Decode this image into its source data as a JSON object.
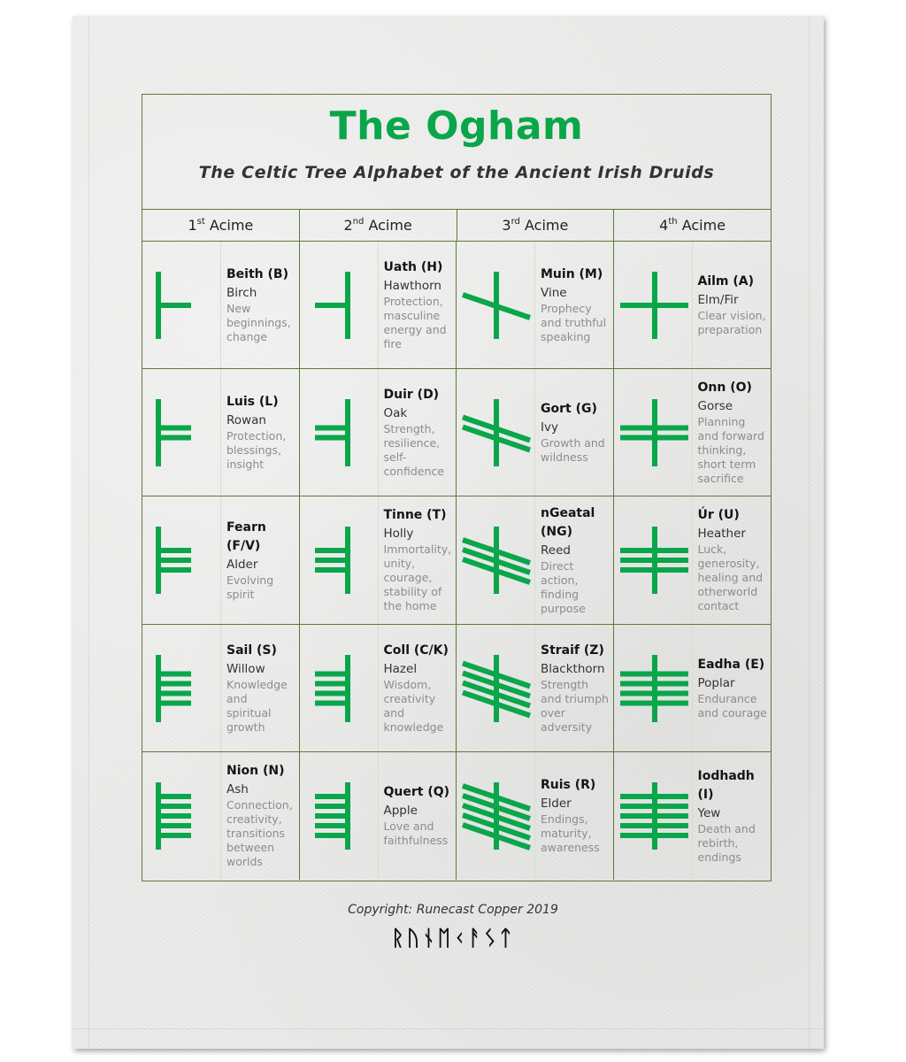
{
  "title": "The Ogham",
  "subtitle": "The Celtic Tree Alphabet of the Ancient Irish Druids",
  "colors": {
    "accent": "#0aa64a",
    "border": "#5c7a3a",
    "text": "#151515",
    "muted": "#8c8c8c",
    "towel": "#ebebea"
  },
  "columns": [
    {
      "num": "1",
      "sup": "st",
      "label": "Acime"
    },
    {
      "num": "2",
      "sup": "nd",
      "label": "Acime"
    },
    {
      "num": "3",
      "sup": "rd",
      "label": "Acime"
    },
    {
      "num": "4",
      "sup": "th",
      "label": "Acime"
    }
  ],
  "rows": [
    [
      {
        "name": "Beith (B)",
        "tree": "Birch",
        "meaning": "New beginnings, change",
        "acime": 1,
        "strokes": 1
      },
      {
        "name": "Uath (H)",
        "tree": "Hawthorn",
        "meaning": "Protection, masculine energy and fire",
        "acime": 2,
        "strokes": 1
      },
      {
        "name": "Muin (M)",
        "tree": "Vine",
        "meaning": "Prophecy and truthful speaking",
        "acime": 3,
        "strokes": 1
      },
      {
        "name": "Ailm (A)",
        "tree": "Elm/Fir",
        "meaning": "Clear vision, preparation",
        "acime": 4,
        "strokes": 1
      }
    ],
    [
      {
        "name": "Luis (L)",
        "tree": "Rowan",
        "meaning": "Protection, blessings, insight",
        "acime": 1,
        "strokes": 2
      },
      {
        "name": "Duir (D)",
        "tree": "Oak",
        "meaning": "Strength, resilience, self-confidence",
        "acime": 2,
        "strokes": 2
      },
      {
        "name": "Gort (G)",
        "tree": "Ivy",
        "meaning": "Growth and wildness",
        "acime": 3,
        "strokes": 2
      },
      {
        "name": "Onn (O)",
        "tree": "Gorse",
        "meaning": "Planning and forward thinking, short term sacrifice",
        "acime": 4,
        "strokes": 2
      }
    ],
    [
      {
        "name": "Fearn (F/V)",
        "tree": "Alder",
        "meaning": "Evolving spirit",
        "acime": 1,
        "strokes": 3
      },
      {
        "name": "Tinne (T)",
        "tree": "Holly",
        "meaning": "Immortality, unity, courage, stability of the home",
        "acime": 2,
        "strokes": 3
      },
      {
        "name": "nGeatal (NG)",
        "tree": "Reed",
        "meaning": "Direct action, finding purpose",
        "acime": 3,
        "strokes": 3
      },
      {
        "name": "Úr (U)",
        "tree": "Heather",
        "meaning": "Luck, generosity, healing and otherworld contact",
        "acime": 4,
        "strokes": 3
      }
    ],
    [
      {
        "name": "Sail (S)",
        "tree": "Willow",
        "meaning": "Knowledge and spiritual growth",
        "acime": 1,
        "strokes": 4
      },
      {
        "name": "Coll (C/K)",
        "tree": "Hazel",
        "meaning": "Wisdom, creativity and knowledge",
        "acime": 2,
        "strokes": 4
      },
      {
        "name": "Straif (Z)",
        "tree": "Blackthorn",
        "meaning": "Strength and triumph over adversity",
        "acime": 3,
        "strokes": 4
      },
      {
        "name": "Eadha (E)",
        "tree": "Poplar",
        "meaning": "Endurance and courage",
        "acime": 4,
        "strokes": 4
      }
    ],
    [
      {
        "name": "Nion (N)",
        "tree": "Ash",
        "meaning": "Connection, creativity, transitions between worlds",
        "acime": 1,
        "strokes": 5
      },
      {
        "name": "Quert (Q)",
        "tree": "Apple",
        "meaning": "Love and faithfulness",
        "acime": 2,
        "strokes": 5
      },
      {
        "name": "Ruis (R)",
        "tree": "Elder",
        "meaning": "Endings, maturity, awareness",
        "acime": 3,
        "strokes": 5
      },
      {
        "name": "Iodhadh (I)",
        "tree": "Yew",
        "meaning": "Death and rebirth, endings",
        "acime": 4,
        "strokes": 5
      }
    ]
  ],
  "footer": {
    "copyright": "Copyright: Runecast Copper 2019",
    "runes": "ᚱᚢᚾᛖᚲᚨᛊᛏ"
  }
}
